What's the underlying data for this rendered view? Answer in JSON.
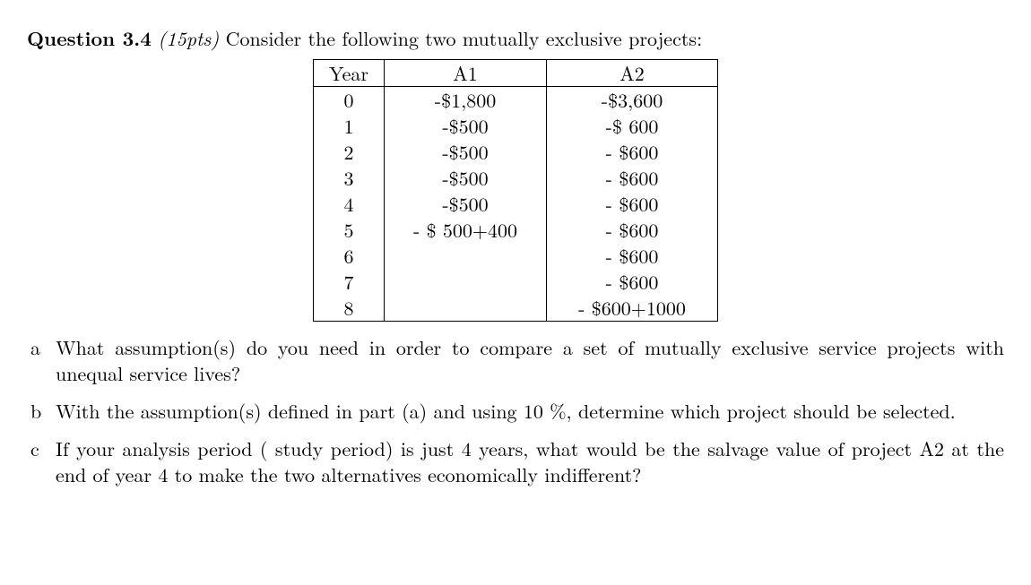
{
  "question": {
    "label": "Question 3.4",
    "points": "(15pts)",
    "prompt": "Consider the following two mutually exclusive projects:"
  },
  "table": {
    "columns": [
      "Year",
      "A1",
      "A2"
    ],
    "rows": [
      [
        "0",
        "-$1,800",
        "-$3,600"
      ],
      [
        "1",
        "-$500",
        "-$ 600"
      ],
      [
        "2",
        "-$500",
        "- $600"
      ],
      [
        "3",
        "-$500",
        "- $600"
      ],
      [
        "4",
        "-$500",
        "- $600"
      ],
      [
        "5",
        "- $ 500+400",
        "- $600"
      ],
      [
        "6",
        "",
        "- $600"
      ],
      [
        "7",
        "",
        "- $600"
      ],
      [
        "8",
        "",
        "- $600+1000"
      ]
    ]
  },
  "parts": {
    "a": {
      "marker": "a",
      "text": "What assumption(s) do you need in order to compare a set of mutually exclusive service projects with unequal service lives?"
    },
    "b": {
      "marker": "b",
      "text": "With the assumption(s) defined in part (a) and using 10 %, determine which project should be selected."
    },
    "c": {
      "marker": "c",
      "text": "If your analysis period ( study period) is just 4 years, what would be the salvage value of project A2 at the end of year 4 to make the two alternatives economically indifferent?"
    }
  }
}
